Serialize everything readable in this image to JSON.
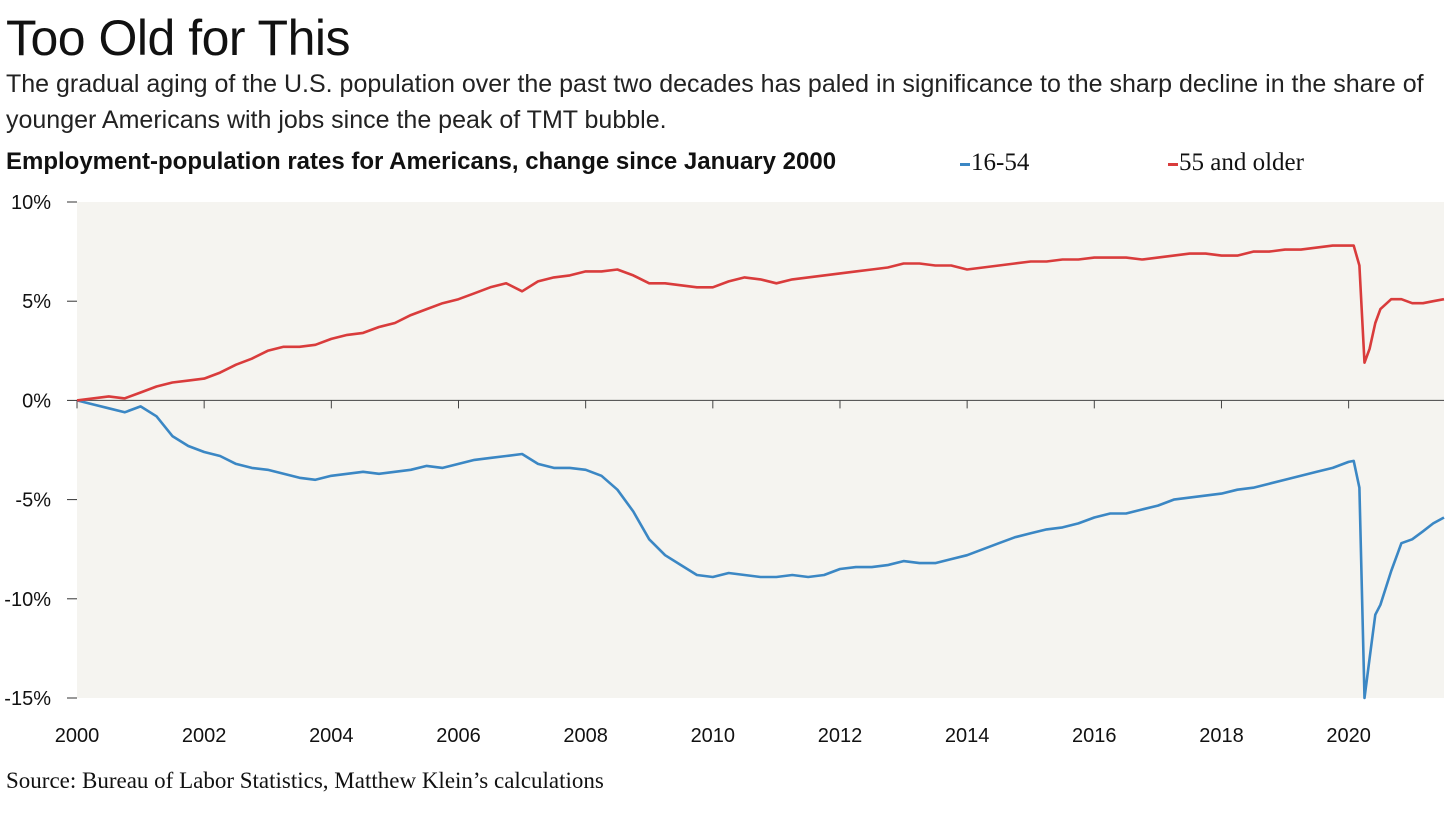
{
  "header": {
    "title": "Too Old for This",
    "subtitle": "The gradual aging of the U.S. population over the past two decades has paled in significance to the sharp decline in the share of younger Americans with jobs since the peak of TMT bubble."
  },
  "footer": {
    "source": "Source: Bureau of Labor Statistics, Matthew Klein’s calculations"
  },
  "chart_data": {
    "type": "line",
    "title": "Employment-population rates for Americans, change since January 2000",
    "xlabel": "",
    "ylabel": "",
    "xlim": [
      2000,
      2021.5
    ],
    "ylim": [
      -15,
      10
    ],
    "y_ticks": [
      10,
      5,
      0,
      -5,
      -10,
      -15
    ],
    "y_tick_labels": [
      "10%",
      "5%",
      "0%",
      "-5%",
      "-10%",
      "-15%"
    ],
    "x_ticks": [
      2000,
      2002,
      2004,
      2006,
      2008,
      2010,
      2012,
      2014,
      2016,
      2018,
      2020
    ],
    "x_tick_labels": [
      "2000",
      "2002",
      "2004",
      "2006",
      "2008",
      "2010",
      "2012",
      "2014",
      "2016",
      "2018",
      "2020"
    ],
    "grid": false,
    "legend_position": "top-right",
    "background_color": "#f5f4f0",
    "series": [
      {
        "name": "16-54",
        "color": "#3b87c4",
        "x": [
          2000,
          2000.25,
          2000.5,
          2000.75,
          2001,
          2001.25,
          2001.5,
          2001.75,
          2002,
          2002.25,
          2002.5,
          2002.75,
          2003,
          2003.25,
          2003.5,
          2003.75,
          2004,
          2004.25,
          2004.5,
          2004.75,
          2005,
          2005.25,
          2005.5,
          2005.75,
          2006,
          2006.25,
          2006.5,
          2006.75,
          2007,
          2007.25,
          2007.5,
          2007.75,
          2008,
          2008.25,
          2008.5,
          2008.75,
          2009,
          2009.25,
          2009.5,
          2009.75,
          2010,
          2010.25,
          2010.5,
          2010.75,
          2011,
          2011.25,
          2011.5,
          2011.75,
          2012,
          2012.25,
          2012.5,
          2012.75,
          2013,
          2013.25,
          2013.5,
          2013.75,
          2014,
          2014.25,
          2014.5,
          2014.75,
          2015,
          2015.25,
          2015.5,
          2015.75,
          2016,
          2016.25,
          2016.5,
          2016.75,
          2017,
          2017.25,
          2017.5,
          2017.75,
          2018,
          2018.25,
          2018.5,
          2018.75,
          2019,
          2019.25,
          2019.5,
          2019.75,
          2020,
          2020.08,
          2020.17,
          2020.25,
          2020.33,
          2020.42,
          2020.5,
          2020.67,
          2020.83,
          2021,
          2021.17,
          2021.33,
          2021.5
        ],
        "values": [
          0,
          -0.2,
          -0.4,
          -0.6,
          -0.3,
          -0.8,
          -1.8,
          -2.3,
          -2.6,
          -2.8,
          -3.2,
          -3.4,
          -3.5,
          -3.7,
          -3.9,
          -4.0,
          -3.8,
          -3.7,
          -3.6,
          -3.7,
          -3.6,
          -3.5,
          -3.3,
          -3.4,
          -3.2,
          -3.0,
          -2.9,
          -2.8,
          -2.7,
          -3.2,
          -3.4,
          -3.4,
          -3.5,
          -3.8,
          -4.5,
          -5.6,
          -7.0,
          -7.8,
          -8.3,
          -8.8,
          -8.9,
          -8.7,
          -8.8,
          -8.9,
          -8.9,
          -8.8,
          -8.9,
          -8.8,
          -8.5,
          -8.4,
          -8.4,
          -8.3,
          -8.1,
          -8.2,
          -8.2,
          -8.0,
          -7.8,
          -7.5,
          -7.2,
          -6.9,
          -6.7,
          -6.5,
          -6.4,
          -6.2,
          -5.9,
          -5.7,
          -5.7,
          -5.5,
          -5.3,
          -5.0,
          -4.9,
          -4.8,
          -4.7,
          -4.5,
          -4.4,
          -4.2,
          -4.0,
          -3.8,
          -3.6,
          -3.4,
          -3.1,
          -3.05,
          -4.4,
          -15.0,
          -13.0,
          -10.8,
          -10.3,
          -8.6,
          -7.2,
          -7.0,
          -6.6,
          -6.2,
          -5.9
        ]
      },
      {
        "name": "55 and older",
        "color": "#d93c3c",
        "x": [
          2000,
          2000.25,
          2000.5,
          2000.75,
          2001,
          2001.25,
          2001.5,
          2001.75,
          2002,
          2002.25,
          2002.5,
          2002.75,
          2003,
          2003.25,
          2003.5,
          2003.75,
          2004,
          2004.25,
          2004.5,
          2004.75,
          2005,
          2005.25,
          2005.5,
          2005.75,
          2006,
          2006.25,
          2006.5,
          2006.75,
          2007,
          2007.25,
          2007.5,
          2007.75,
          2008,
          2008.25,
          2008.5,
          2008.75,
          2009,
          2009.25,
          2009.5,
          2009.75,
          2010,
          2010.25,
          2010.5,
          2010.75,
          2011,
          2011.25,
          2011.5,
          2011.75,
          2012,
          2012.25,
          2012.5,
          2012.75,
          2013,
          2013.25,
          2013.5,
          2013.75,
          2014,
          2014.25,
          2014.5,
          2014.75,
          2015,
          2015.25,
          2015.5,
          2015.75,
          2016,
          2016.25,
          2016.5,
          2016.75,
          2017,
          2017.25,
          2017.5,
          2017.75,
          2018,
          2018.25,
          2018.5,
          2018.75,
          2019,
          2019.25,
          2019.5,
          2019.75,
          2020,
          2020.08,
          2020.17,
          2020.25,
          2020.33,
          2020.42,
          2020.5,
          2020.67,
          2020.83,
          2021,
          2021.17,
          2021.33,
          2021.5
        ],
        "values": [
          0,
          0.1,
          0.2,
          0.1,
          0.4,
          0.7,
          0.9,
          1.0,
          1.1,
          1.4,
          1.8,
          2.1,
          2.5,
          2.7,
          2.7,
          2.8,
          3.1,
          3.3,
          3.4,
          3.7,
          3.9,
          4.3,
          4.6,
          4.9,
          5.1,
          5.4,
          5.7,
          5.9,
          5.5,
          6.0,
          6.2,
          6.3,
          6.5,
          6.5,
          6.6,
          6.3,
          5.9,
          5.9,
          5.8,
          5.7,
          5.7,
          6.0,
          6.2,
          6.1,
          5.9,
          6.1,
          6.2,
          6.3,
          6.4,
          6.5,
          6.6,
          6.7,
          6.9,
          6.9,
          6.8,
          6.8,
          6.6,
          6.7,
          6.8,
          6.9,
          7.0,
          7.0,
          7.1,
          7.1,
          7.2,
          7.2,
          7.2,
          7.1,
          7.2,
          7.3,
          7.4,
          7.4,
          7.3,
          7.3,
          7.5,
          7.5,
          7.6,
          7.6,
          7.7,
          7.8,
          7.8,
          7.8,
          6.8,
          1.9,
          2.6,
          3.9,
          4.6,
          5.1,
          5.1,
          4.9,
          4.9,
          5.0,
          5.1
        ]
      }
    ]
  }
}
